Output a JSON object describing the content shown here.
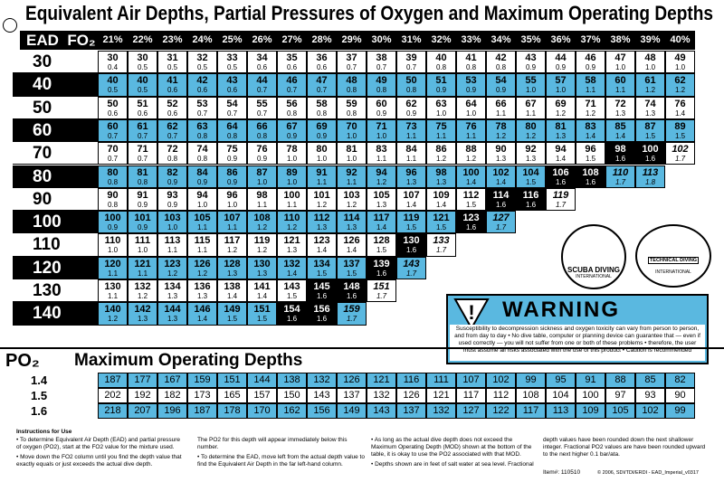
{
  "title": "Equivalent Air Depths, Partial Pressures of Oxygen and Maximum Operating Depths",
  "header": {
    "ead": "EAD",
    "fo2": "FO₂",
    "percents": [
      "21%",
      "22%",
      "23%",
      "24%",
      "25%",
      "26%",
      "27%",
      "28%",
      "29%",
      "30%",
      "31%",
      "32%",
      "33%",
      "34%",
      "35%",
      "36%",
      "37%",
      "38%",
      "39%",
      "40%"
    ]
  },
  "rows": [
    {
      "ead": 30,
      "cells": [
        [
          30,
          "0.4"
        ],
        [
          30,
          "0.5"
        ],
        [
          31,
          "0.5"
        ],
        [
          32,
          "0.5"
        ],
        [
          33,
          "0.5"
        ],
        [
          34,
          "0.6"
        ],
        [
          35,
          "0.6"
        ],
        [
          36,
          "0.6"
        ],
        [
          37,
          "0.7"
        ],
        [
          38,
          "0.7"
        ],
        [
          39,
          "0.7"
        ],
        [
          40,
          "0.8"
        ],
        [
          41,
          "0.8"
        ],
        [
          42,
          "0.8"
        ],
        [
          43,
          "0.9"
        ],
        [
          44,
          "0.9"
        ],
        [
          46,
          "0.9"
        ],
        [
          47,
          "1.0"
        ],
        [
          48,
          "1.0"
        ],
        [
          49,
          "1.0"
        ]
      ]
    },
    {
      "ead": 40,
      "cells": [
        [
          40,
          "0.5"
        ],
        [
          40,
          "0.5"
        ],
        [
          41,
          "0.6"
        ],
        [
          42,
          "0.6"
        ],
        [
          43,
          "0.6"
        ],
        [
          44,
          "0.7"
        ],
        [
          46,
          "0.7"
        ],
        [
          47,
          "0.7"
        ],
        [
          48,
          "0.8"
        ],
        [
          49,
          "0.8"
        ],
        [
          50,
          "0.8"
        ],
        [
          51,
          "0.9"
        ],
        [
          53,
          "0.9"
        ],
        [
          54,
          "0.9"
        ],
        [
          55,
          "1.0"
        ],
        [
          57,
          "1.0"
        ],
        [
          58,
          "1.1"
        ],
        [
          60,
          "1.1"
        ],
        [
          61,
          "1.2"
        ],
        [
          62,
          "1.2"
        ]
      ]
    },
    {
      "ead": 50,
      "cells": [
        [
          50,
          "0.6"
        ],
        [
          51,
          "0.6"
        ],
        [
          52,
          "0.6"
        ],
        [
          53,
          "0.7"
        ],
        [
          54,
          "0.7"
        ],
        [
          55,
          "0.7"
        ],
        [
          56,
          "0.8"
        ],
        [
          58,
          "0.8"
        ],
        [
          59,
          "0.8"
        ],
        [
          60,
          "0.9"
        ],
        [
          62,
          "0.9"
        ],
        [
          63,
          "1.0"
        ],
        [
          64,
          "1.0"
        ],
        [
          66,
          "1.1"
        ],
        [
          67,
          "1.1"
        ],
        [
          69,
          "1.2"
        ],
        [
          71,
          "1.2"
        ],
        [
          72,
          "1.3"
        ],
        [
          74,
          "1.3"
        ],
        [
          76,
          "1.4"
        ]
      ]
    },
    {
      "ead": 60,
      "cells": [
        [
          60,
          "0.7"
        ],
        [
          61,
          "0.7"
        ],
        [
          62,
          "0.7"
        ],
        [
          63,
          "0.8"
        ],
        [
          64,
          "0.8"
        ],
        [
          66,
          "0.8"
        ],
        [
          67,
          "0.9"
        ],
        [
          69,
          "0.9"
        ],
        [
          70,
          "1.0"
        ],
        [
          71,
          "1.0"
        ],
        [
          73,
          "1.1"
        ],
        [
          75,
          "1.1"
        ],
        [
          76,
          "1.1"
        ],
        [
          78,
          "1.2"
        ],
        [
          80,
          "1.2"
        ],
        [
          81,
          "1.3"
        ],
        [
          83,
          "1.4"
        ],
        [
          85,
          "1.4"
        ],
        [
          87,
          "1.5"
        ],
        [
          89,
          "1.5"
        ]
      ]
    },
    {
      "ead": 70,
      "cells": [
        [
          70,
          "0.7"
        ],
        [
          71,
          "0.7"
        ],
        [
          72,
          "0.8"
        ],
        [
          74,
          "0.8"
        ],
        [
          75,
          "0.9"
        ],
        [
          76,
          "0.9"
        ],
        [
          78,
          "1.0"
        ],
        [
          80,
          "1.0"
        ],
        [
          81,
          "1.0"
        ],
        [
          83,
          "1.1"
        ],
        [
          84,
          "1.1"
        ],
        [
          86,
          "1.2"
        ],
        [
          88,
          "1.2"
        ],
        [
          90,
          "1.3"
        ],
        [
          92,
          "1.3"
        ],
        [
          94,
          "1.4"
        ],
        [
          96,
          "1.5"
        ],
        [
          98,
          "1.6"
        ],
        [
          100,
          "1.6"
        ],
        [
          102,
          "1.7"
        ]
      ]
    },
    {
      "ead": 80,
      "cells": [
        [
          80,
          "0.8"
        ],
        [
          81,
          "0.8"
        ],
        [
          82,
          "0.9"
        ],
        [
          84,
          "0.9"
        ],
        [
          86,
          "0.9"
        ],
        [
          87,
          "1.0"
        ],
        [
          89,
          "1.0"
        ],
        [
          91,
          "1.1"
        ],
        [
          92,
          "1.1"
        ],
        [
          94,
          "1.2"
        ],
        [
          96,
          "1.3"
        ],
        [
          98,
          "1.3"
        ],
        [
          100,
          "1.4"
        ],
        [
          102,
          "1.4"
        ],
        [
          104,
          "1.5"
        ],
        [
          106,
          "1.6"
        ],
        [
          108,
          "1.6"
        ],
        [
          110,
          "1.7"
        ],
        [
          113,
          "1.8"
        ]
      ]
    },
    {
      "ead": 90,
      "cells": [
        [
          90,
          "0.8"
        ],
        [
          91,
          "0.9"
        ],
        [
          93,
          "0.9"
        ],
        [
          94,
          "1.0"
        ],
        [
          96,
          "1.0"
        ],
        [
          98,
          "1.1"
        ],
        [
          100,
          "1.1"
        ],
        [
          101,
          "1.2"
        ],
        [
          103,
          "1.2"
        ],
        [
          105,
          "1.3"
        ],
        [
          107,
          "1.4"
        ],
        [
          109,
          "1.4"
        ],
        [
          112,
          "1.5"
        ],
        [
          114,
          "1.6"
        ],
        [
          116,
          "1.6"
        ],
        [
          119,
          "1.7"
        ]
      ]
    },
    {
      "ead": 100,
      "cells": [
        [
          100,
          "0.9"
        ],
        [
          101,
          "0.9"
        ],
        [
          103,
          "1.0"
        ],
        [
          105,
          "1.1"
        ],
        [
          107,
          "1.1"
        ],
        [
          108,
          "1.2"
        ],
        [
          110,
          "1.2"
        ],
        [
          112,
          "1.3"
        ],
        [
          114,
          "1.3"
        ],
        [
          117,
          "1.4"
        ],
        [
          119,
          "1.5"
        ],
        [
          121,
          "1.5"
        ],
        [
          123,
          "1.6"
        ],
        [
          127,
          "1.7"
        ]
      ]
    },
    {
      "ead": 110,
      "cells": [
        [
          110,
          "1.0"
        ],
        [
          111,
          "1.0"
        ],
        [
          113,
          "1.1"
        ],
        [
          115,
          "1.1"
        ],
        [
          117,
          "1.2"
        ],
        [
          119,
          "1.2"
        ],
        [
          121,
          "1.3"
        ],
        [
          123,
          "1.4"
        ],
        [
          126,
          "1.4"
        ],
        [
          128,
          "1.5"
        ],
        [
          130,
          "1.6"
        ],
        [
          133,
          "1.7"
        ]
      ]
    },
    {
      "ead": 120,
      "cells": [
        [
          120,
          "1.1"
        ],
        [
          121,
          "1.1"
        ],
        [
          123,
          "1.2"
        ],
        [
          126,
          "1.2"
        ],
        [
          128,
          "1.3"
        ],
        [
          130,
          "1.3"
        ],
        [
          132,
          "1.4"
        ],
        [
          134,
          "1.5"
        ],
        [
          137,
          "1.5"
        ],
        [
          139,
          "1.6"
        ],
        [
          143,
          "1.7"
        ]
      ]
    },
    {
      "ead": 130,
      "cells": [
        [
          130,
          "1.1"
        ],
        [
          132,
          "1.2"
        ],
        [
          134,
          "1.3"
        ],
        [
          136,
          "1.3"
        ],
        [
          138,
          "1.4"
        ],
        [
          141,
          "1.4"
        ],
        [
          143,
          "1.5"
        ],
        [
          145,
          "1.6"
        ],
        [
          148,
          "1.6"
        ],
        [
          151,
          "1.7"
        ]
      ]
    },
    {
      "ead": 140,
      "cells": [
        [
          140,
          "1.2"
        ],
        [
          142,
          "1.3"
        ],
        [
          144,
          "1.3"
        ],
        [
          146,
          "1.4"
        ],
        [
          149,
          "1.5"
        ],
        [
          151,
          "1.5"
        ],
        [
          154,
          "1.6"
        ],
        [
          156,
          "1.6"
        ],
        [
          159,
          "1.7"
        ]
      ]
    }
  ],
  "mod": {
    "label": "PO₂",
    "title": "Maximum Operating Depths",
    "rows": [
      {
        "po2": "1.4",
        "depths": [
          187,
          177,
          167,
          159,
          151,
          144,
          138,
          132,
          126,
          121,
          116,
          111,
          107,
          102,
          99,
          95,
          91,
          88,
          85,
          82
        ]
      },
      {
        "po2": "1.5",
        "depths": [
          202,
          192,
          182,
          173,
          165,
          157,
          150,
          143,
          137,
          132,
          126,
          121,
          117,
          112,
          108,
          104,
          100,
          97,
          93,
          90
        ]
      },
      {
        "po2": "1.6",
        "depths": [
          218,
          207,
          196,
          187,
          178,
          170,
          162,
          156,
          149,
          143,
          137,
          132,
          127,
          122,
          117,
          113,
          109,
          105,
          102,
          99
        ]
      }
    ]
  },
  "logos": [
    {
      "line1": "SCUBA DIVING",
      "line2": "INTERNATIONAL"
    },
    {
      "line1": "TECHNICAL DIVING",
      "line2": "INTERNATIONAL"
    }
  ],
  "warning": {
    "title": "WARNING",
    "text": "Susceptibility to decompression sickness and oxygen toxicity can vary from person to person, and from day to day • No dive table, computer or planning device can guarantee that — even if used correctly — you will not suffer from one or both of these problems • therefore, the user must assume all risks associated with the use of this product • Caution is recommended"
  },
  "instructions": {
    "title": "Instructions for Use",
    "columns": [
      [
        "• To determine Equivalent Air Depth (EAD) and partial pressure of oxygen (PO2), start at the FO2 value for the mixture used.",
        "• Move down the FO2 column until you find the depth value that exactly equals or just exceeds the actual dive depth."
      ],
      [
        "The PO2 for this depth will appear immediately below this number.",
        "• To determine the EAD, move left from the actual depth value to find the Equivalent Air Depth in the far left-hand column."
      ],
      [
        "• As long as the actual dive depth does not exceed the Maximum Operating Depth (MOD) shown at the bottom of the table, it is okay to use the PO2 associated with that MOD.",
        "• Depths shown are in feet of salt water at sea level. Fractional"
      ],
      [
        "depth values have been rounded down the next shallower integer. Fractional PO2 values are have been rounded upward to the next higher 0.1 bar/ata."
      ]
    ]
  },
  "item": "Item#: 110510",
  "copyright": "© 2006, SDI/TDI/ERDI - EAD_Imperial_v0317"
}
